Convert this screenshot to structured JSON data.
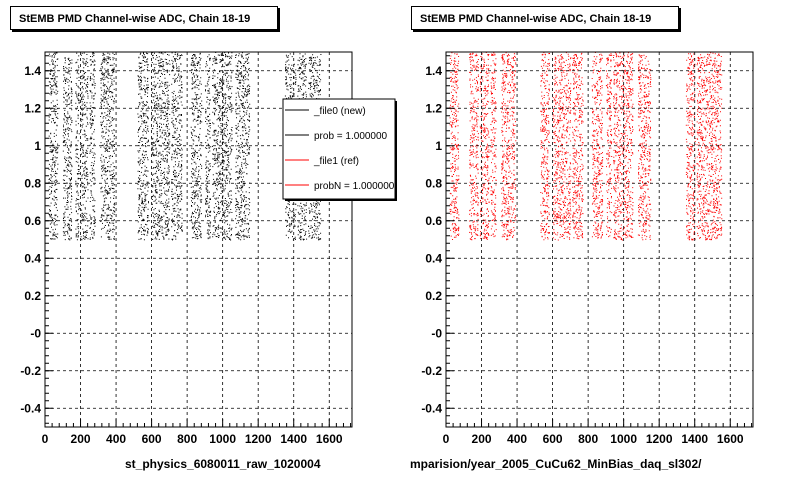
{
  "left_title": "StEMB PMD Channel-wise ADC, Chain 18-19",
  "right_title": "StEMB PMD Channel-wise ADC, Chain 18-19",
  "left_file": "st_physics_6080011_raw_1020004",
  "right_file": "mparision/year_2005_CuCu62_MinBias_daq_sl302/",
  "legend": {
    "entries": [
      {
        "label": "_file0 (new)",
        "color": "#000000"
      },
      {
        "label": "prob = 1.000000",
        "color": "#000000"
      },
      {
        "label": "_file1 (ref)",
        "color": "#ff0000"
      },
      {
        "label": "probN = 1.000000",
        "color": "#ff0000"
      }
    ]
  },
  "colors": {
    "new": "#000000",
    "ref": "#ff0000"
  },
  "chart_data": [
    {
      "type": "scatter",
      "title": "StEMB PMD Channel-wise ADC, Chain 18-19",
      "xlabel": "",
      "ylabel": "",
      "xlim": [
        0,
        1728
      ],
      "ylim": [
        -0.5,
        1.5
      ],
      "grid": true,
      "legend_position": "top-right",
      "x_ticks": [
        0,
        200,
        400,
        600,
        800,
        1000,
        1200,
        1400,
        1600
      ],
      "x_tick_labels": [
        "0",
        "200",
        "400",
        "600",
        "800",
        "1000",
        "1200",
        "1400",
        "1600"
      ],
      "y_ticks": [
        -0.4,
        -0.2,
        0.0,
        0.2,
        0.4,
        0.6,
        0.8,
        1.0,
        1.2,
        1.4
      ],
      "y_tick_labels": [
        "-0.4",
        "-0.2",
        "-0",
        "0.2",
        "0.4",
        "0.6",
        "0.8",
        "1",
        "1.2",
        "1.4"
      ],
      "series": [
        {
          "name": "_file0 (new)",
          "color": "#000000",
          "y_range": [
            0.5,
            1.5
          ],
          "x_bands": [
            [
              20,
              70
            ],
            [
              100,
              150
            ],
            [
              170,
              190
            ],
            [
              200,
              240
            ],
            [
              250,
              280
            ],
            [
              310,
              390
            ],
            [
              520,
              580
            ],
            [
              600,
              700
            ],
            [
              710,
              770
            ],
            [
              820,
              880
            ],
            [
              900,
              930
            ],
            [
              940,
              1000
            ],
            [
              1000,
              1050
            ],
            [
              1070,
              1150
            ],
            [
              1350,
              1410
            ],
            [
              1420,
              1470
            ],
            [
              1480,
              1550
            ]
          ]
        }
      ]
    },
    {
      "type": "scatter",
      "title": "StEMB PMD Channel-wise ADC, Chain 18-19",
      "xlabel": "",
      "ylabel": "",
      "xlim": [
        0,
        1728
      ],
      "ylim": [
        -0.5,
        1.5
      ],
      "grid": true,
      "x_ticks": [
        0,
        200,
        400,
        600,
        800,
        1000,
        1200,
        1400,
        1600
      ],
      "x_tick_labels": [
        "0",
        "200",
        "400",
        "600",
        "800",
        "1000",
        "1200",
        "1400",
        "1600"
      ],
      "y_ticks": [
        -0.4,
        -0.2,
        0.0,
        0.2,
        0.4,
        0.6,
        0.8,
        1.0,
        1.2,
        1.4
      ],
      "y_tick_labels": [
        "-0.4",
        "-0.2",
        "-0",
        "0.2",
        "0.4",
        "0.6",
        "0.8",
        "1",
        "1.2",
        "1.4"
      ],
      "series": [
        {
          "name": "_file1 (ref)",
          "color": "#ff0000",
          "y_range": [
            0.5,
            1.5
          ],
          "x_bands": [
            [
              20,
              70
            ],
            [
              130,
              180
            ],
            [
              190,
              240
            ],
            [
              250,
              280
            ],
            [
              310,
              390
            ],
            [
              530,
              580
            ],
            [
              600,
              700
            ],
            [
              710,
              770
            ],
            [
              820,
              880
            ],
            [
              900,
              930
            ],
            [
              940,
              1000
            ],
            [
              1000,
              1050
            ],
            [
              1080,
              1150
            ],
            [
              1350,
              1400
            ],
            [
              1410,
              1470
            ],
            [
              1470,
              1550
            ]
          ]
        }
      ]
    }
  ]
}
